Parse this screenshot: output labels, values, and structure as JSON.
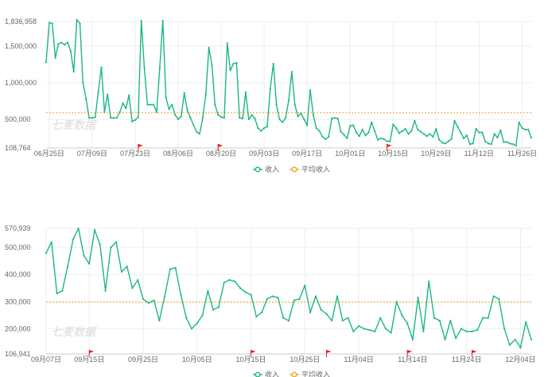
{
  "colors": {
    "series": "#1cb58a",
    "average": "#f5a623",
    "grid": "#ededed",
    "axis": "#cccccc",
    "flag": "#e02020",
    "watermark": "#d9d9d9"
  },
  "watermark": "七麦数据",
  "chart_data": [
    {
      "type": "line",
      "ylim": [
        108764,
        1836958
      ],
      "yticks": [
        108764,
        500000,
        1000000,
        1500000,
        1836958
      ],
      "ytick_labels": [
        "108,764",
        "500,000",
        "1,000,000",
        "1,500,000",
        "1,836,958"
      ],
      "xtick_labels": [
        "06月25日",
        "07月09日",
        "07月23日",
        "08月06日",
        "08月20日",
        "09月03日",
        "09月17日",
        "10月01日",
        "10月15日",
        "10月29日",
        "11月12日",
        "11月26日"
      ],
      "xtick_index": [
        1,
        15,
        29,
        43,
        57,
        71,
        85,
        99,
        113,
        127,
        141,
        155
      ],
      "flags_index": [
        30,
        56,
        111
      ],
      "average": 590000,
      "series": [
        {
          "name": "收入",
          "values": [
            1280000,
            1820000,
            1810000,
            1340000,
            1530000,
            1550000,
            1520000,
            1550000,
            1430000,
            1150000,
            1860000,
            1810000,
            1000000,
            780000,
            520000,
            520000,
            530000,
            880000,
            1210000,
            600000,
            840000,
            520000,
            520000,
            520000,
            600000,
            720000,
            650000,
            830000,
            470000,
            490000,
            530000,
            1850000,
            1200000,
            700000,
            700000,
            700000,
            600000,
            1200000,
            1850000,
            800000,
            640000,
            700000,
            560000,
            500000,
            540000,
            860000,
            620000,
            520000,
            420000,
            330000,
            300000,
            520000,
            840000,
            1480000,
            1240000,
            700000,
            560000,
            530000,
            520000,
            1540000,
            1170000,
            1260000,
            1270000,
            520000,
            510000,
            870000,
            500000,
            560000,
            510000,
            380000,
            340000,
            380000,
            400000,
            920000,
            1260000,
            700000,
            500000,
            460000,
            520000,
            760000,
            1150000,
            700000,
            540000,
            580000,
            500000,
            420000,
            900000,
            560000,
            380000,
            340000,
            260000,
            230000,
            260000,
            510000,
            520000,
            510000,
            330000,
            290000,
            240000,
            410000,
            420000,
            320000,
            270000,
            360000,
            280000,
            320000,
            460000,
            340000,
            220000,
            240000,
            230000,
            200000,
            200000,
            430000,
            380000,
            310000,
            340000,
            370000,
            300000,
            340000,
            480000,
            360000,
            330000,
            300000,
            270000,
            300000,
            260000,
            370000,
            220000,
            180000,
            170000,
            200000,
            230000,
            480000,
            400000,
            320000,
            240000,
            280000,
            160000,
            170000,
            370000,
            320000,
            320000,
            200000,
            170000,
            160000,
            300000,
            250000,
            350000,
            190000,
            190000,
            170000,
            160000,
            140000,
            460000,
            380000,
            360000,
            360000,
            250000
          ]
        },
        {
          "name": "平均收入",
          "values": []
        }
      ],
      "legend": [
        "收入",
        "平均收入"
      ]
    },
    {
      "type": "line",
      "ylim": [
        106941,
        570939
      ],
      "yticks": [
        106941,
        200000,
        300000,
        400000,
        500000,
        570939
      ],
      "ytick_labels": [
        "106,941",
        "200,000",
        "300,000",
        "400,000",
        "500,000",
        "570,939"
      ],
      "xtick_labels": [
        "09月07日",
        "09月15日",
        "09月25日",
        "10月05日",
        "10月15日",
        "10月25日",
        "11月04日",
        "11月14日",
        "11月24日",
        "12月04日"
      ],
      "xtick_index": [
        0,
        8,
        18,
        28,
        38,
        48,
        58,
        68,
        78,
        88
      ],
      "flags_index": [
        8,
        38,
        52,
        67,
        79
      ],
      "average": 298000,
      "series": [
        {
          "name": "收入",
          "values": [
            480000,
            520000,
            330000,
            340000,
            430000,
            530000,
            570000,
            470000,
            440000,
            565000,
            510000,
            340000,
            500000,
            520000,
            410000,
            430000,
            350000,
            380000,
            310000,
            295000,
            305000,
            230000,
            320000,
            420000,
            425000,
            325000,
            240000,
            200000,
            220000,
            250000,
            340000,
            270000,
            280000,
            370000,
            380000,
            375000,
            350000,
            335000,
            325000,
            245000,
            260000,
            310000,
            320000,
            315000,
            240000,
            230000,
            305000,
            310000,
            360000,
            260000,
            320000,
            270000,
            255000,
            230000,
            320000,
            230000,
            240000,
            190000,
            210000,
            200000,
            195000,
            190000,
            240000,
            200000,
            185000,
            300000,
            250000,
            220000,
            160000,
            315000,
            190000,
            375000,
            240000,
            230000,
            160000,
            230000,
            165000,
            200000,
            190000,
            190000,
            195000,
            240000,
            240000,
            320000,
            310000,
            200000,
            140000,
            160000,
            130000,
            225000,
            160000
          ]
        },
        {
          "name": "平均收入",
          "values": []
        }
      ],
      "legend": [
        "收入",
        "平均收入"
      ]
    }
  ]
}
